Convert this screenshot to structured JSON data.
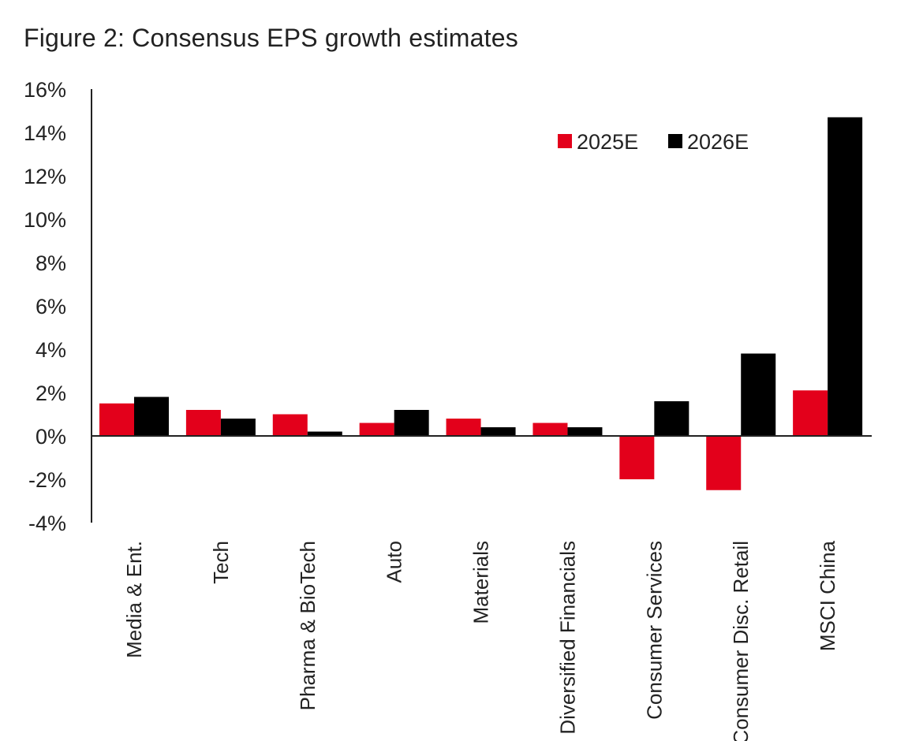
{
  "title": "Figure 2: Consensus EPS growth estimates",
  "chart_data": {
    "type": "bar",
    "title": "Figure 2: Consensus EPS growth estimates",
    "xlabel": "",
    "ylabel": "",
    "ylim": [
      -4,
      16
    ],
    "ytick_step": 2,
    "ytick_labels": [
      "-4%",
      "-2%",
      "0%",
      "2%",
      "4%",
      "6%",
      "8%",
      "10%",
      "12%",
      "14%",
      "16%"
    ],
    "categories": [
      "Media & Ent.",
      "Tech",
      "Pharma & BioTech",
      "Auto",
      "Materials",
      "Diversified Financials",
      "Consumer Services",
      "Consumer Disc. Retail",
      "MSCI China"
    ],
    "series": [
      {
        "name": "2025E",
        "color": "#e3001b",
        "values": [
          1.5,
          1.2,
          1.0,
          0.6,
          0.8,
          0.6,
          -2.0,
          -2.5,
          2.1
        ]
      },
      {
        "name": "2026E",
        "color": "#000000",
        "values": [
          1.8,
          0.8,
          0.2,
          1.2,
          0.4,
          0.4,
          1.6,
          3.8,
          14.7
        ]
      }
    ],
    "legend": "top-right",
    "grid": false
  }
}
